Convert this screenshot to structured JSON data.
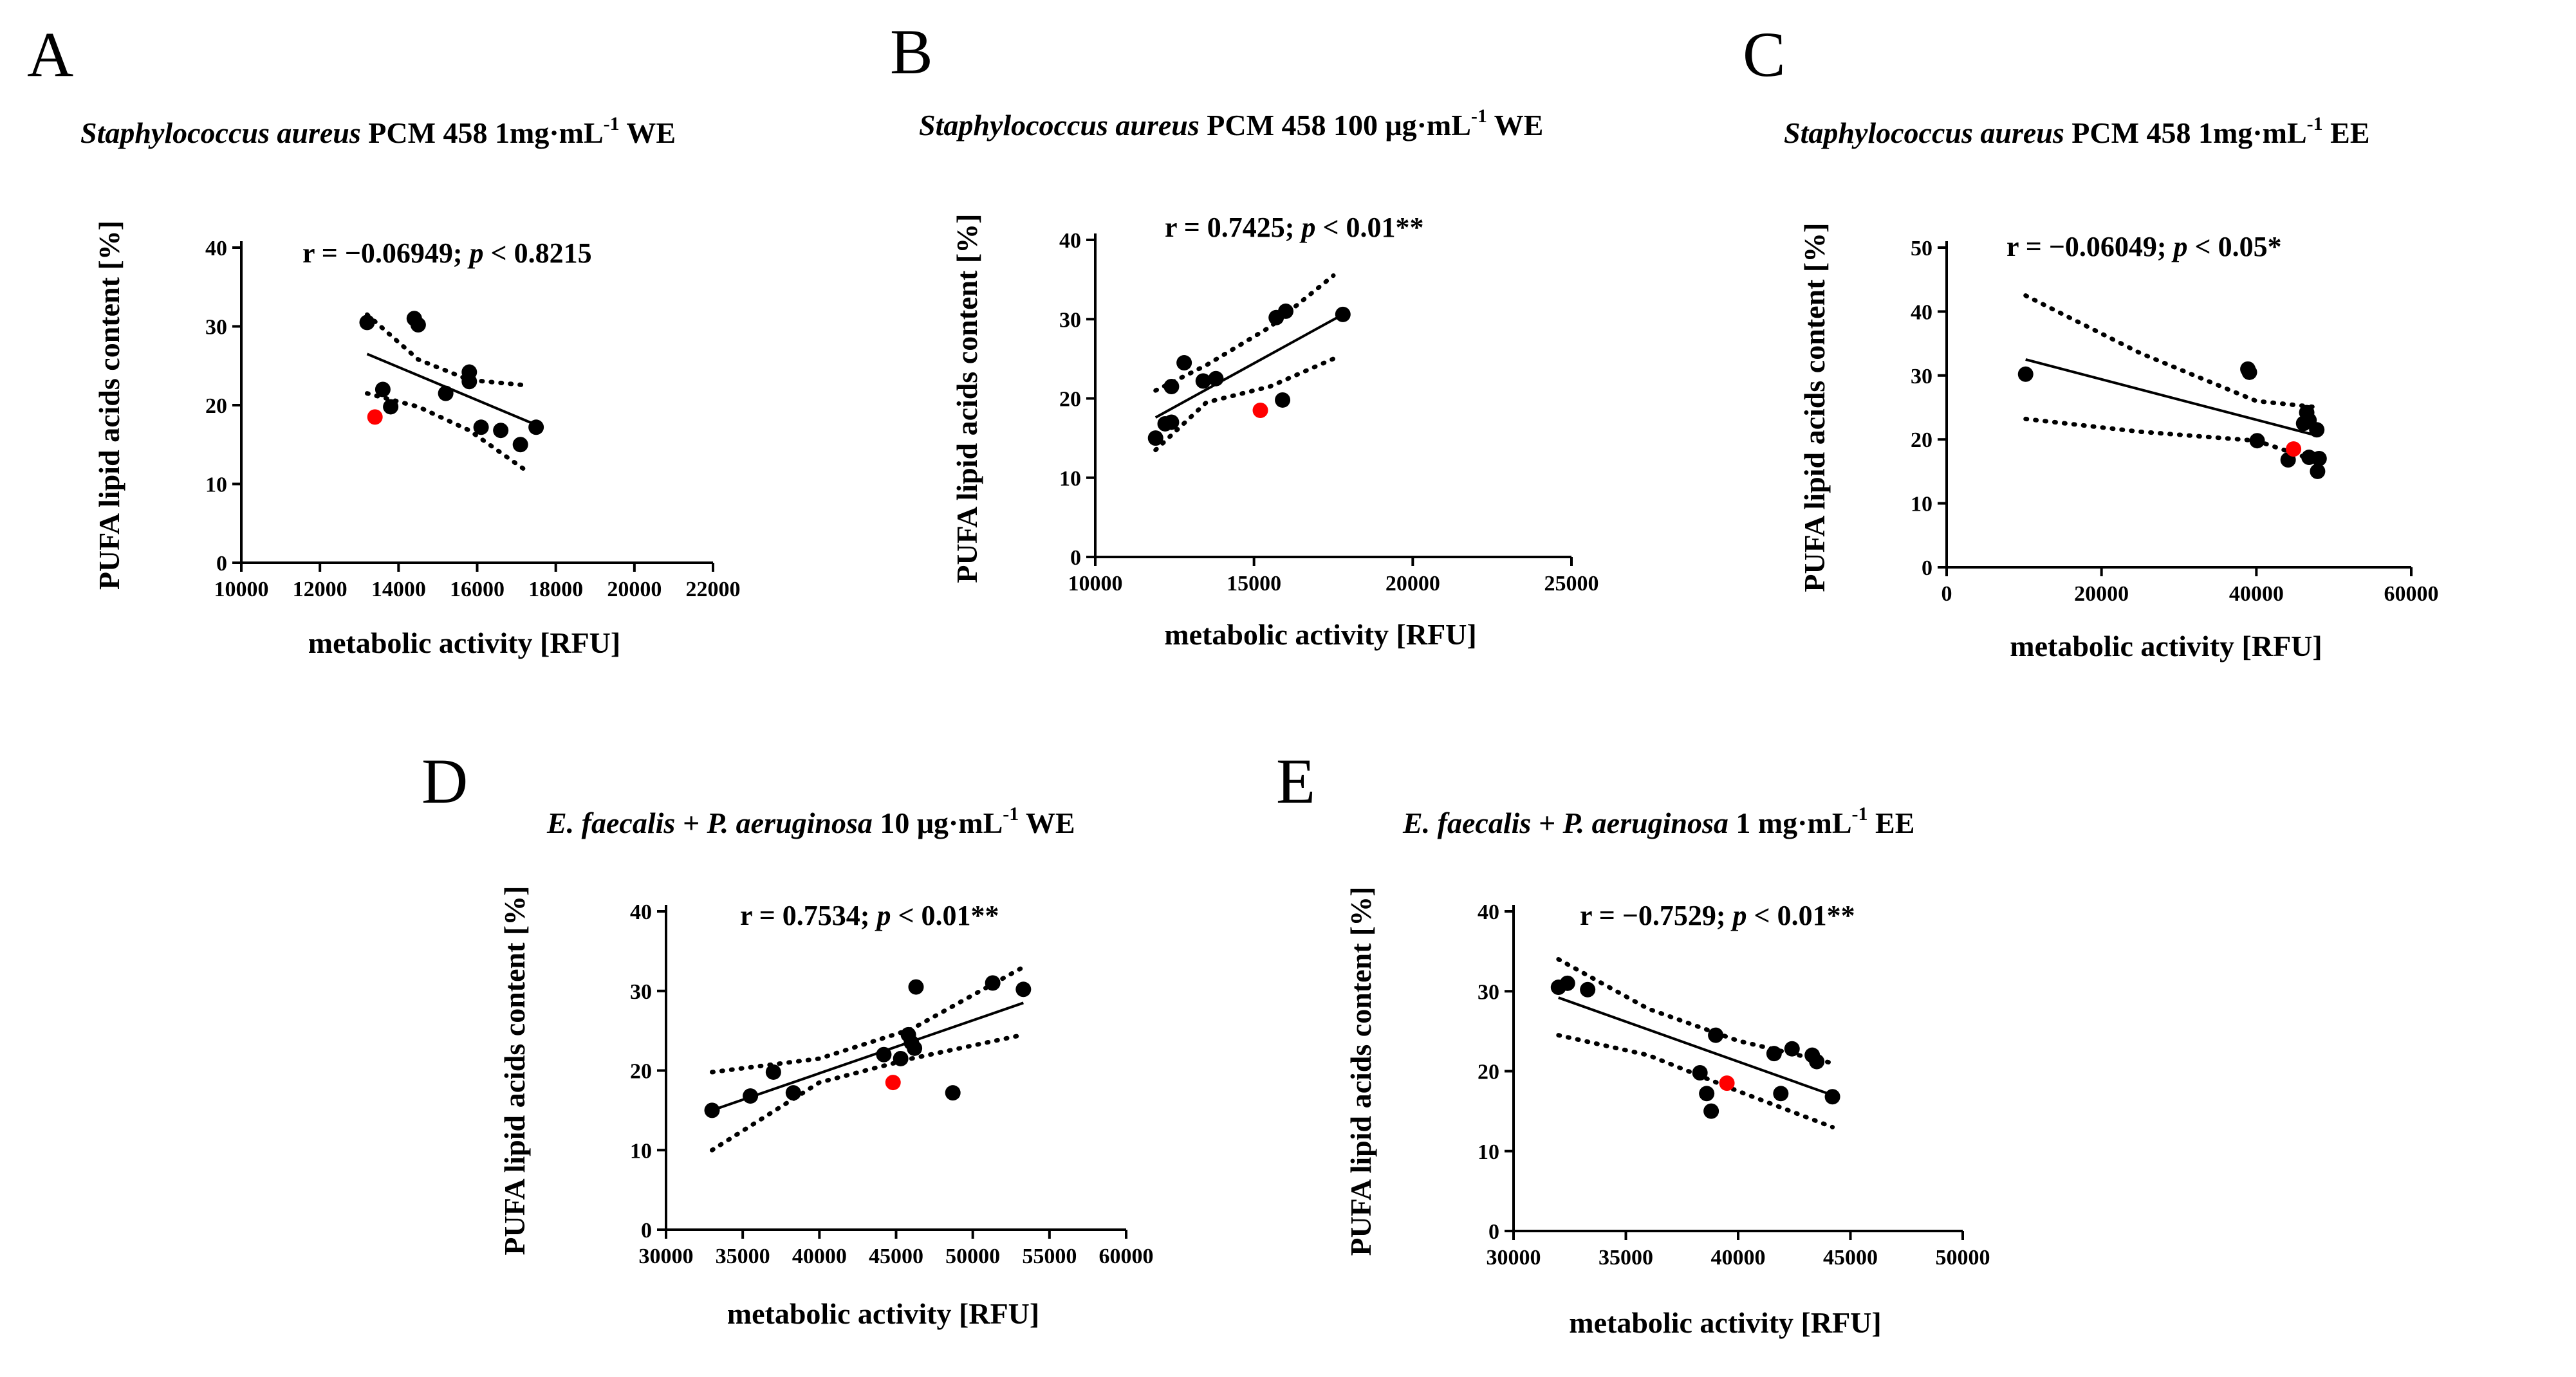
{
  "figure": {
    "background": "#ffffff",
    "ink": "#000000",
    "highlight": "#ff0000"
  },
  "chart_data": [
    {
      "type": "scatter",
      "letter": "A",
      "title": {
        "italic": "Staphylococcus aureus",
        "rest": "PCM 458  1mg·mL",
        "sup": "-1",
        "after": " WE"
      },
      "stat": {
        "pre": "r = −0.06949; ",
        "p": "p",
        "post": " < 0.8215"
      },
      "xlabel": "metabolic activity [RFU]",
      "ylabel": "PUFA lipid acids content [%]",
      "xlim": [
        10000,
        22000
      ],
      "ylim": [
        0,
        40
      ],
      "xticks": [
        10000,
        12000,
        14000,
        16000,
        18000,
        20000,
        22000
      ],
      "yticks": [
        0,
        10,
        20,
        30,
        40
      ],
      "points": [
        {
          "x": 13200,
          "y": 30.5
        },
        {
          "x": 13600,
          "y": 22
        },
        {
          "x": 13800,
          "y": 19.8
        },
        {
          "x": 14400,
          "y": 31
        },
        {
          "x": 14500,
          "y": 30.2
        },
        {
          "x": 15200,
          "y": 21.5
        },
        {
          "x": 15800,
          "y": 24.2
        },
        {
          "x": 15800,
          "y": 23
        },
        {
          "x": 16100,
          "y": 17.2
        },
        {
          "x": 16600,
          "y": 16.8
        },
        {
          "x": 17100,
          "y": 15
        },
        {
          "x": 17500,
          "y": 17.2
        }
      ],
      "highlight": [
        {
          "x": 13400,
          "y": 18.5
        }
      ],
      "fit": {
        "x": [
          13200,
          17500
        ],
        "y": [
          26.5,
          17.5
        ]
      },
      "band_upper": {
        "x": [
          13200,
          14500,
          15800,
          17300
        ],
        "y": [
          31.5,
          25.8,
          23.2,
          22.5
        ]
      },
      "band_lower": {
        "x": [
          13200,
          14500,
          15800,
          17300
        ],
        "y": [
          21.5,
          19.8,
          16.8,
          11.5
        ]
      }
    },
    {
      "type": "scatter",
      "letter": "B",
      "title": {
        "italic": "Staphylococcus aureus",
        "rest": "PCM 458  100 μg·mL",
        "sup": "-1",
        "after": " WE"
      },
      "stat": {
        "pre": "r = 0.7425; ",
        "p": "p",
        "post": " < 0.01**"
      },
      "xlabel": "metabolic activity [RFU]",
      "ylabel": "PUFA lipid acids content [%]",
      "xlim": [
        10000,
        25000
      ],
      "ylim": [
        0,
        40
      ],
      "xticks": [
        10000,
        15000,
        20000,
        25000
      ],
      "yticks": [
        0,
        10,
        20,
        30,
        40
      ],
      "points": [
        {
          "x": 11900,
          "y": 15
        },
        {
          "x": 12200,
          "y": 16.8
        },
        {
          "x": 12400,
          "y": 21.5
        },
        {
          "x": 12400,
          "y": 17
        },
        {
          "x": 12800,
          "y": 24.5
        },
        {
          "x": 13400,
          "y": 22.2
        },
        {
          "x": 13800,
          "y": 22.5
        },
        {
          "x": 15700,
          "y": 30.2
        },
        {
          "x": 16000,
          "y": 31
        },
        {
          "x": 15900,
          "y": 19.8
        },
        {
          "x": 17800,
          "y": 30.6
        }
      ],
      "highlight": [
        {
          "x": 15200,
          "y": 18.5
        }
      ],
      "fit": {
        "x": [
          11900,
          17800
        ],
        "y": [
          17.6,
          30.6
        ]
      },
      "band_upper": {
        "x": [
          11900,
          13500,
          15500,
          17500
        ],
        "y": [
          21,
          24.2,
          29,
          35.5
        ]
      },
      "band_lower": {
        "x": [
          11900,
          13500,
          15500,
          17500
        ],
        "y": [
          13.5,
          19.5,
          21.5,
          25
        ]
      }
    },
    {
      "type": "scatter",
      "letter": "C",
      "title": {
        "italic": "Staphylococcus aureus",
        "rest": "PCM 458  1mg·mL",
        "sup": "-1",
        "after": " EE"
      },
      "stat": {
        "pre": "r = −0.06049; ",
        "p": "p",
        "post": " < 0.05*"
      },
      "xlabel": "metabolic activity [RFU]",
      "ylabel": "PUFA lipid acids content [%]",
      "xlim": [
        0,
        60000
      ],
      "ylim": [
        0,
        50
      ],
      "xticks": [
        0,
        20000,
        40000,
        60000
      ],
      "yticks": [
        0,
        10,
        20,
        30,
        40,
        50
      ],
      "points": [
        {
          "x": 10200,
          "y": 30.2
        },
        {
          "x": 38900,
          "y": 31
        },
        {
          "x": 39100,
          "y": 30.5
        },
        {
          "x": 40100,
          "y": 19.8
        },
        {
          "x": 44100,
          "y": 16.8
        },
        {
          "x": 46100,
          "y": 22.5
        },
        {
          "x": 46500,
          "y": 24.2
        },
        {
          "x": 46800,
          "y": 23
        },
        {
          "x": 46800,
          "y": 17.2
        },
        {
          "x": 47800,
          "y": 21.5
        },
        {
          "x": 47900,
          "y": 15
        },
        {
          "x": 48100,
          "y": 17
        }
      ],
      "highlight": [
        {
          "x": 44800,
          "y": 18.5
        }
      ],
      "fit": {
        "x": [
          10200,
          48100
        ],
        "y": [
          32.5,
          20.5
        ]
      },
      "band_upper": {
        "x": [
          10200,
          25000,
          40000,
          48100
        ],
        "y": [
          42.5,
          33.5,
          26,
          25
        ]
      },
      "band_lower": {
        "x": [
          10200,
          25000,
          40000,
          48100
        ],
        "y": [
          23.2,
          21.2,
          19.8,
          16.5
        ]
      }
    },
    {
      "type": "scatter",
      "letter": "D",
      "title": {
        "italic": "E. faecalis + P. aeruginosa",
        "rest": "  10 μg·mL",
        "sup": "-1",
        "after": " WE"
      },
      "stat": {
        "pre": "r = 0.7534; ",
        "p": "p",
        "post": " < 0.01**"
      },
      "xlabel": "metabolic activity [RFU]",
      "ylabel": "PUFA lipid acids content [%]",
      "xlim": [
        30000,
        60000
      ],
      "ylim": [
        0,
        40
      ],
      "xticks": [
        30000,
        35000,
        40000,
        45000,
        50000,
        55000,
        60000
      ],
      "yticks": [
        0,
        10,
        20,
        30,
        40
      ],
      "points": [
        {
          "x": 33000,
          "y": 15
        },
        {
          "x": 35500,
          "y": 16.8
        },
        {
          "x": 37000,
          "y": 19.8
        },
        {
          "x": 38300,
          "y": 17.2
        },
        {
          "x": 44200,
          "y": 22
        },
        {
          "x": 45300,
          "y": 21.5
        },
        {
          "x": 45800,
          "y": 24.5
        },
        {
          "x": 46000,
          "y": 23.5
        },
        {
          "x": 46200,
          "y": 22.8
        },
        {
          "x": 46300,
          "y": 30.5
        },
        {
          "x": 48700,
          "y": 17.2
        },
        {
          "x": 51300,
          "y": 31
        },
        {
          "x": 53300,
          "y": 30.2
        }
      ],
      "highlight": [
        {
          "x": 44800,
          "y": 18.5
        }
      ],
      "fit": {
        "x": [
          33000,
          53300
        ],
        "y": [
          15,
          28.5
        ]
      },
      "band_upper": {
        "x": [
          33000,
          40000,
          46000,
          53300
        ],
        "y": [
          19.8,
          21.5,
          25.2,
          33
        ]
      },
      "band_lower": {
        "x": [
          33000,
          40000,
          46000,
          53300
        ],
        "y": [
          10,
          18.5,
          21.5,
          24.5
        ]
      }
    },
    {
      "type": "scatter",
      "letter": "E",
      "title": {
        "italic": "E. faecalis + P. aeruginosa",
        "rest": "  1 mg·mL",
        "sup": "-1",
        "after": " EE"
      },
      "stat": {
        "pre": "r = −0.7529; ",
        "p": "p",
        "post": " < 0.01**"
      },
      "xlabel": "metabolic activity [RFU]",
      "ylabel": "PUFA lipid acids content [%]",
      "xlim": [
        30000,
        50000
      ],
      "ylim": [
        0,
        40
      ],
      "xticks": [
        30000,
        35000,
        40000,
        45000,
        50000
      ],
      "yticks": [
        0,
        10,
        20,
        30,
        40
      ],
      "points": [
        {
          "x": 32000,
          "y": 30.5
        },
        {
          "x": 32400,
          "y": 31
        },
        {
          "x": 33300,
          "y": 30.2
        },
        {
          "x": 38300,
          "y": 19.8
        },
        {
          "x": 38600,
          "y": 17.2
        },
        {
          "x": 38800,
          "y": 15
        },
        {
          "x": 39000,
          "y": 24.5
        },
        {
          "x": 41600,
          "y": 22.2
        },
        {
          "x": 41900,
          "y": 17.2
        },
        {
          "x": 42400,
          "y": 22.8
        },
        {
          "x": 43300,
          "y": 22
        },
        {
          "x": 43500,
          "y": 21.2
        },
        {
          "x": 44200,
          "y": 16.8
        }
      ],
      "highlight": [
        {
          "x": 39500,
          "y": 18.5
        }
      ],
      "fit": {
        "x": [
          32000,
          44200
        ],
        "y": [
          29.2,
          17
        ]
      },
      "band_upper": {
        "x": [
          32000,
          36000,
          40000,
          44200
        ],
        "y": [
          34,
          27.8,
          23.8,
          21
        ]
      },
      "band_lower": {
        "x": [
          32000,
          36000,
          40000,
          44200
        ],
        "y": [
          24.5,
          22,
          17.5,
          13
        ]
      }
    }
  ]
}
